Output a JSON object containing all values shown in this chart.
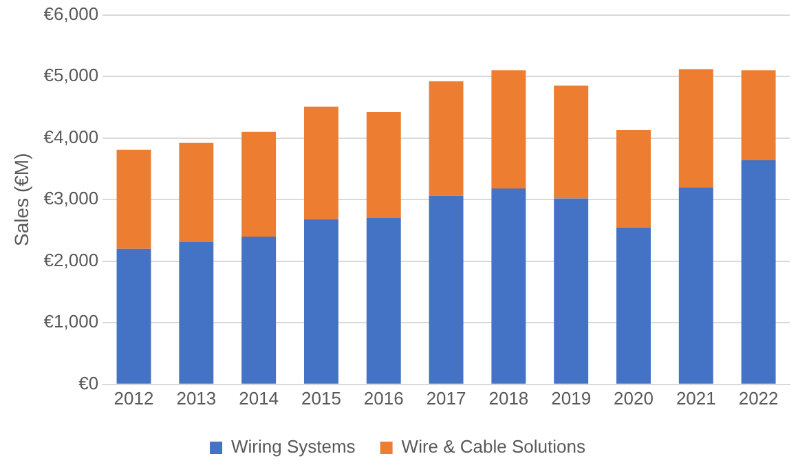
{
  "chart_data": {
    "type": "bar",
    "stacked": true,
    "ylabel": "Sales (€M)",
    "categories": [
      "2012",
      "2013",
      "2014",
      "2015",
      "2016",
      "2017",
      "2018",
      "2019",
      "2020",
      "2021",
      "2022"
    ],
    "series": [
      {
        "name": "Wiring Systems",
        "color": "#4472c4",
        "values": [
          2200,
          2310,
          2400,
          2680,
          2700,
          3060,
          3180,
          3020,
          2550,
          3200,
          3640
        ]
      },
      {
        "name": "Wire & Cable Solutions",
        "color": "#ed7d31",
        "values": [
          1610,
          1610,
          1700,
          1830,
          1720,
          1860,
          1920,
          1830,
          1580,
          1920,
          1460
        ]
      }
    ],
    "ylim": [
      0,
      6000
    ],
    "yticks": [
      {
        "value": 0,
        "label": "€0"
      },
      {
        "value": 1000,
        "label": "€1,000"
      },
      {
        "value": 2000,
        "label": "€2,000"
      },
      {
        "value": 3000,
        "label": "€3,000"
      },
      {
        "value": 4000,
        "label": "€4,000"
      },
      {
        "value": 5000,
        "label": "€5,000"
      },
      {
        "value": 6000,
        "label": "€6,000"
      }
    ],
    "grid": "y",
    "legend": "bottom"
  }
}
